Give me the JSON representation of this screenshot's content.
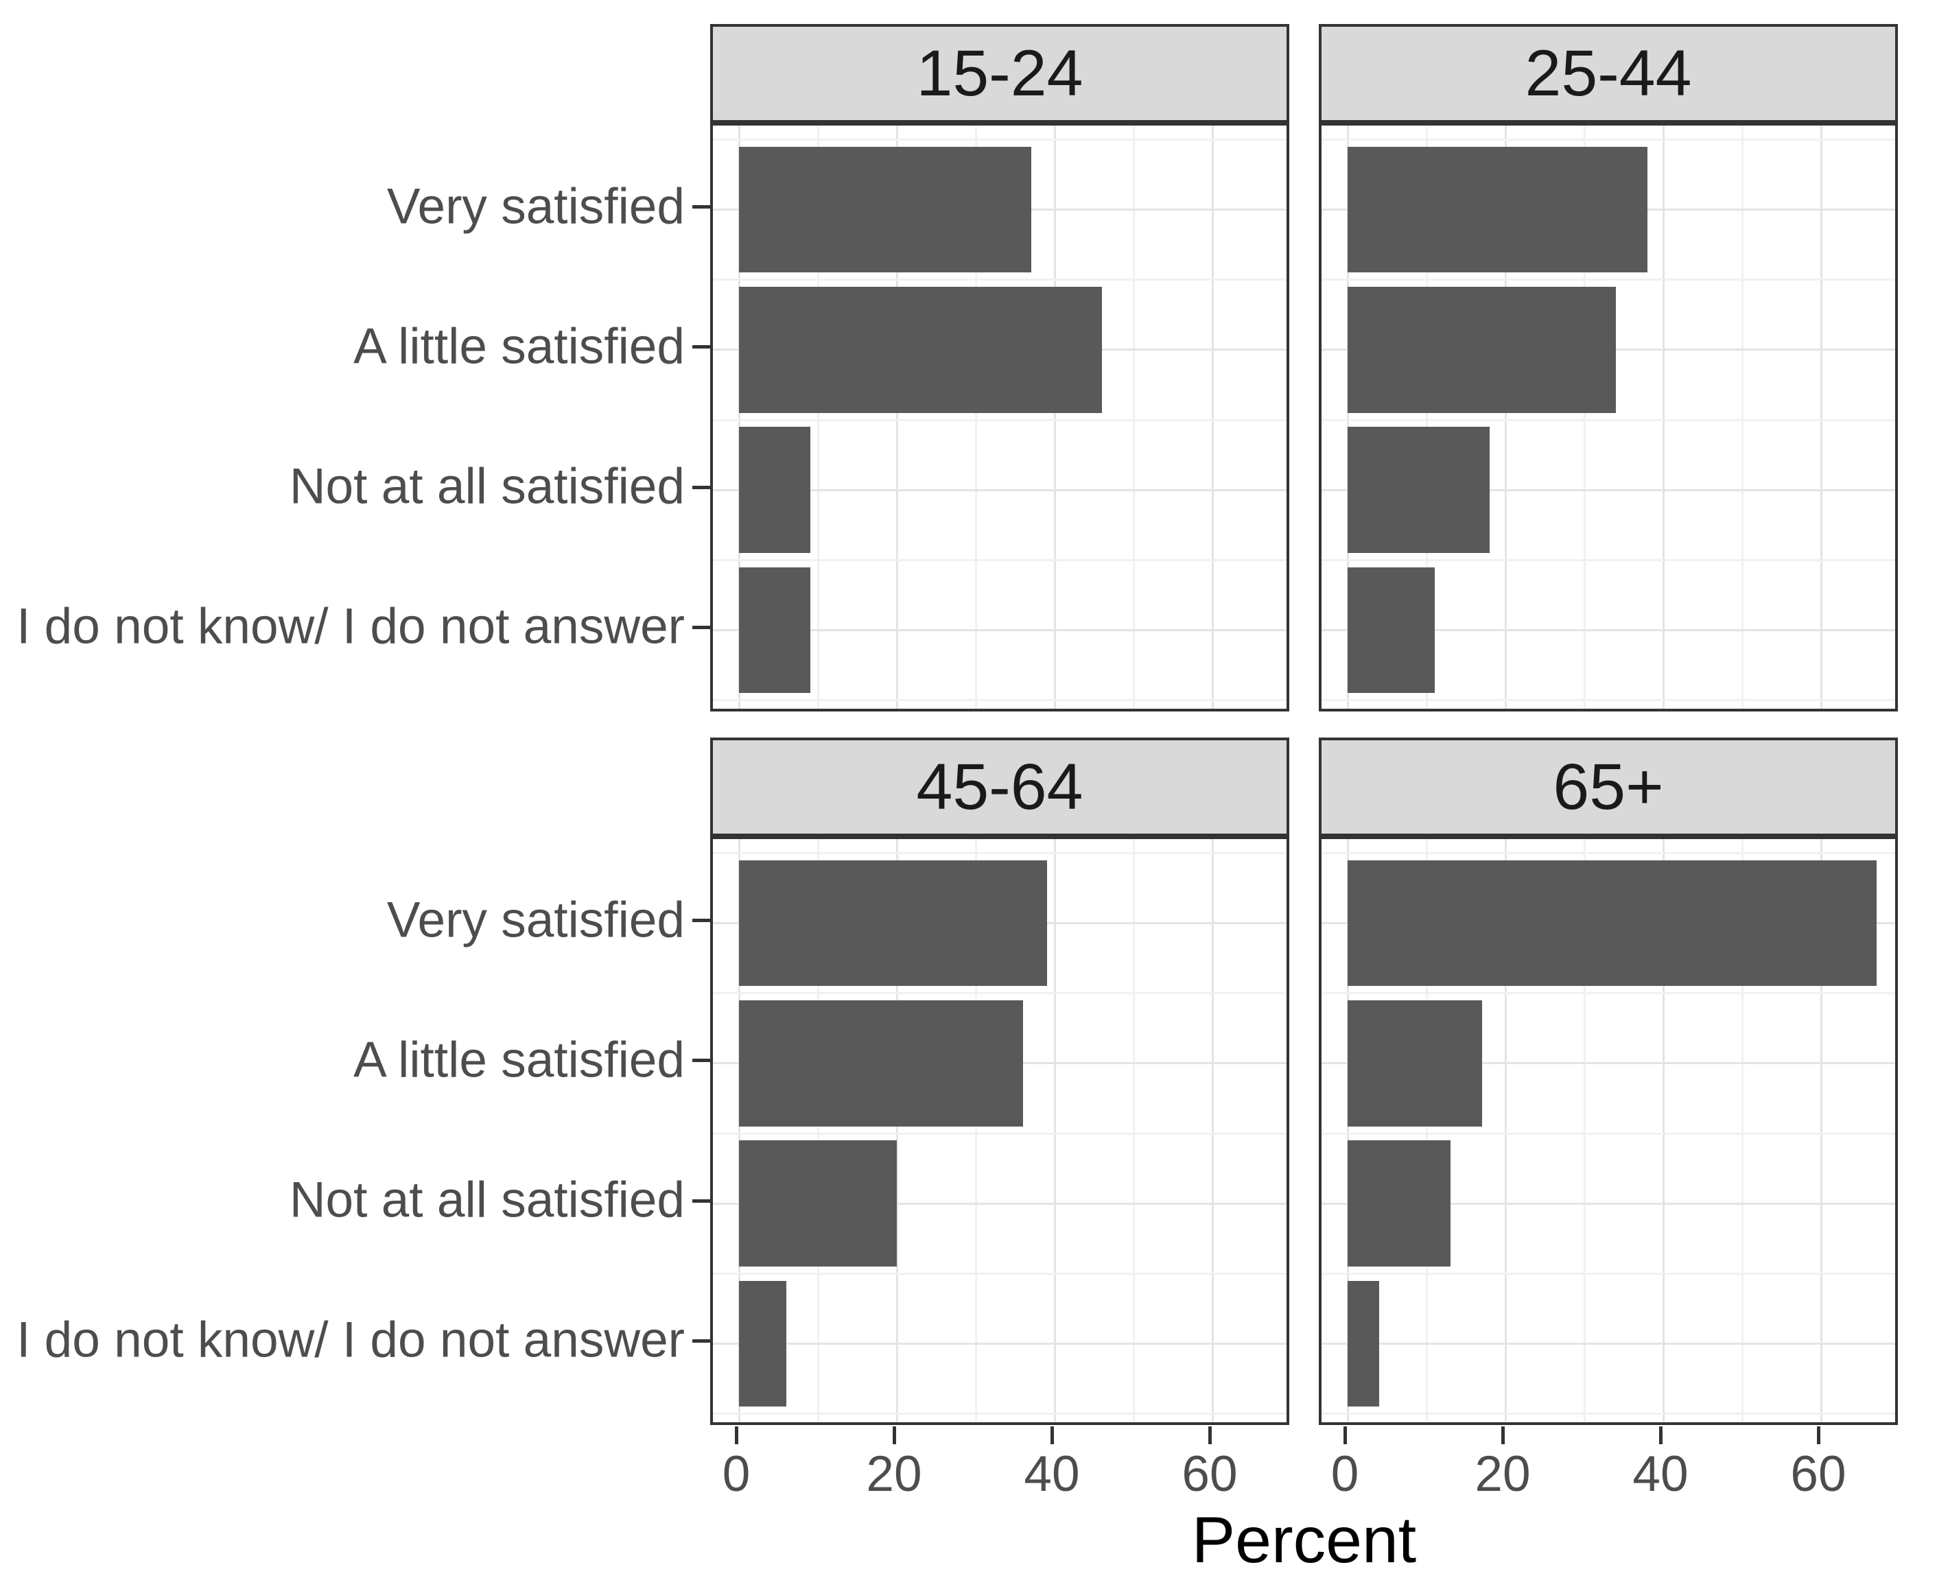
{
  "chart_data": {
    "type": "bar",
    "orientation": "horizontal",
    "title": "",
    "xlabel": "Percent",
    "categories": [
      "Very satisfied",
      "A little satisfied",
      "Not at all satisfied",
      "I do not know/ I do not answer"
    ],
    "x_ticks": [
      0,
      20,
      40,
      60
    ],
    "x_minor_gridlines": [
      10,
      30,
      50
    ],
    "xlim": [
      0,
      70
    ],
    "grid": true,
    "legend": "none",
    "facets": [
      {
        "label": "15-24",
        "values": [
          37,
          46,
          9,
          9
        ]
      },
      {
        "label": "25-44",
        "values": [
          38,
          34,
          18,
          11
        ]
      },
      {
        "label": "45-64",
        "values": [
          39,
          36,
          20,
          6
        ]
      },
      {
        "label": "65+",
        "values": [
          67,
          17,
          13,
          4
        ]
      }
    ],
    "colors": {
      "bar": "#595959",
      "strip_background": "#d9d9d9",
      "panel_border": "#333333",
      "grid_major": "#e4e4e4",
      "grid_minor": "#f1f1f1",
      "axis_text": "#4d4d4d",
      "strip_text": "#1a1a1a",
      "axis_title": "#000000"
    }
  }
}
